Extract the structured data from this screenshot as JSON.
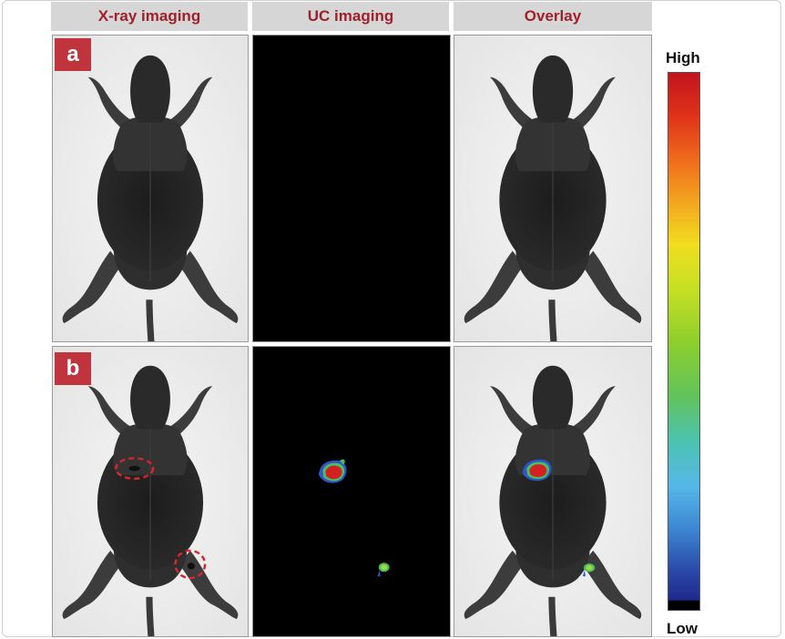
{
  "columns": {
    "xray": "X-ray imaging",
    "uc": "UC imaging",
    "overlay": "Overlay"
  },
  "rows": {
    "a": "a",
    "b": "b"
  },
  "colorbar": {
    "high": "High",
    "low": "Low"
  },
  "colors": {
    "header_bg": "#d6d6d6",
    "header_text": "#a0202a",
    "label_bg": "#c0353d",
    "high_signal": "#c2131e",
    "low_signal": "#1f2a8c"
  }
}
